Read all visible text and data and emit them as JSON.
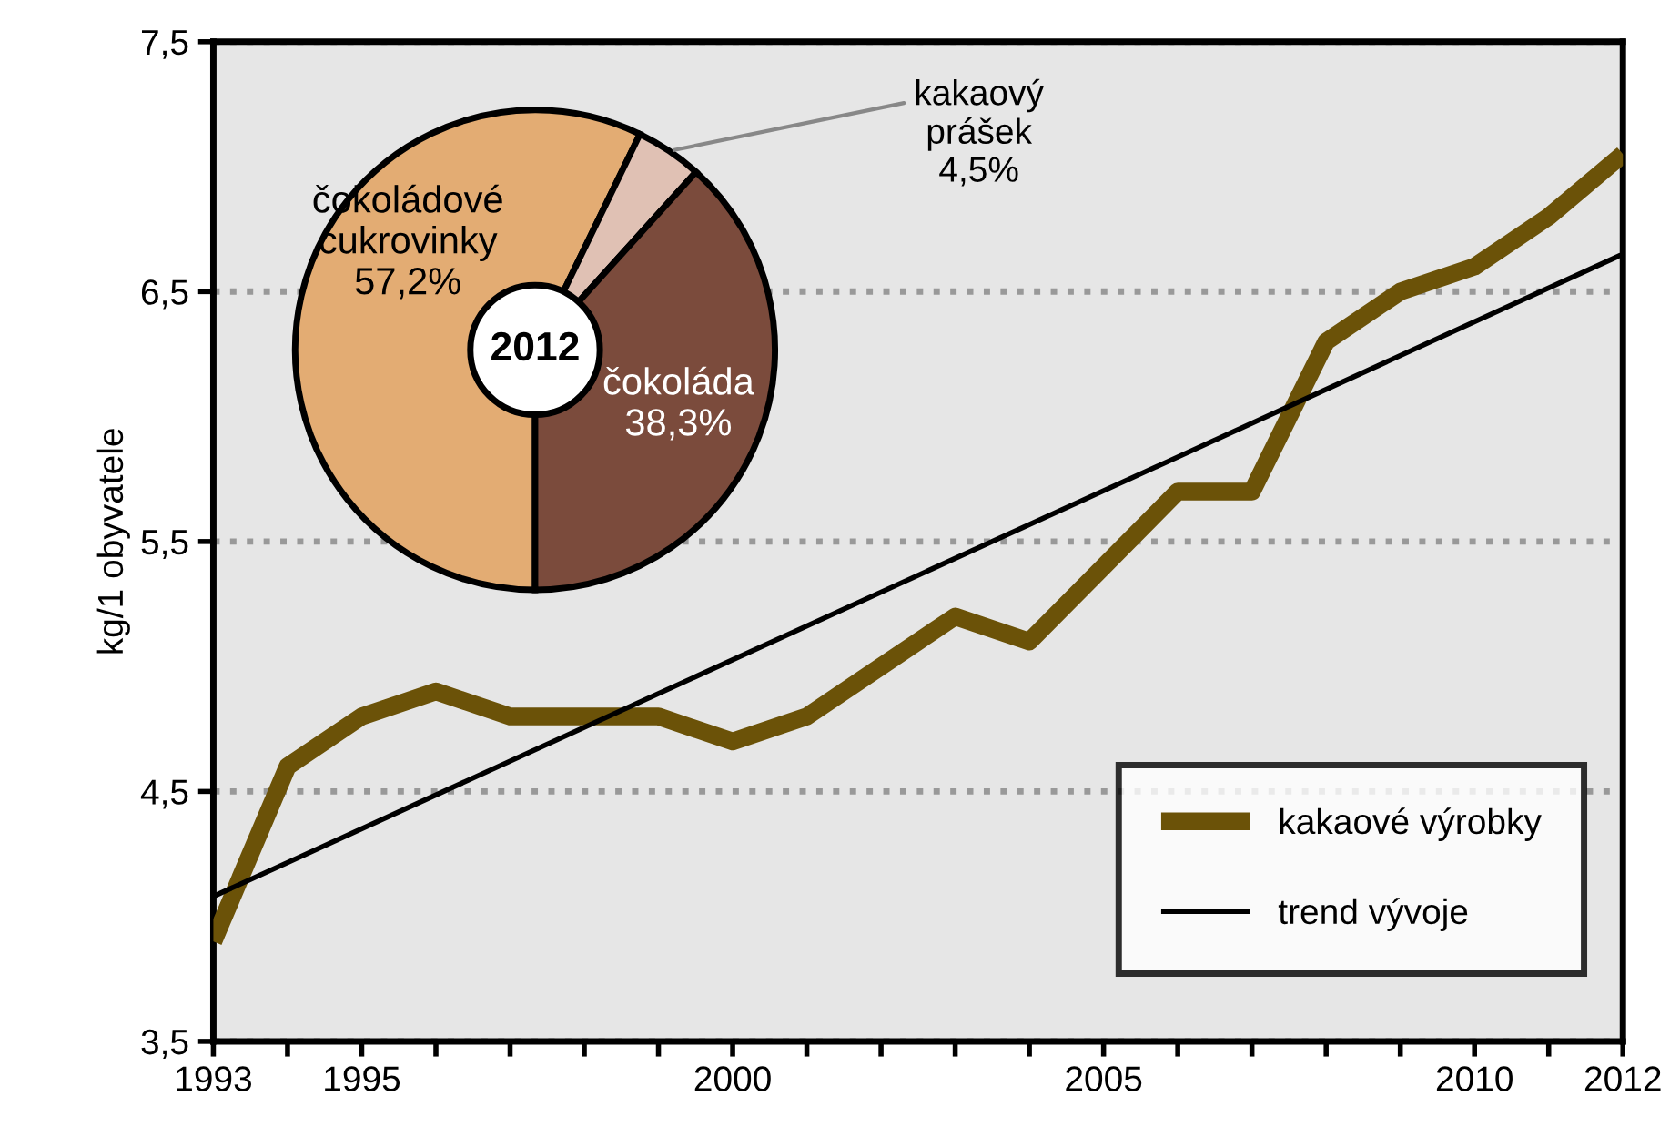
{
  "chart_data": [
    {
      "type": "line",
      "ylabel": "kg/1 obyvatele",
      "xlim": [
        1993,
        2012
      ],
      "ylim": [
        3.5,
        7.5
      ],
      "xticks": [
        1993,
        {
          "value": 1994,
          "label": null
        },
        1995,
        {
          "value": 1996,
          "label": null
        },
        {
          "value": 1997,
          "label": null
        },
        {
          "value": 1998,
          "label": null
        },
        {
          "value": 1999,
          "label": null
        },
        2000,
        {
          "value": 2001,
          "label": null
        },
        {
          "value": 2002,
          "label": null
        },
        {
          "value": 2003,
          "label": null
        },
        {
          "value": 2004,
          "label": null
        },
        2005,
        {
          "value": 2006,
          "label": null
        },
        {
          "value": 2007,
          "label": null
        },
        {
          "value": 2008,
          "label": null
        },
        {
          "value": 2009,
          "label": null
        },
        2010,
        {
          "value": 2011,
          "label": null
        },
        2012
      ],
      "yticks": [
        {
          "value": 3.5,
          "label": "3,5"
        },
        {
          "value": 4.5,
          "label": "4,5"
        },
        {
          "value": 5.5,
          "label": "5,5"
        },
        {
          "value": 6.5,
          "label": "6,5"
        },
        {
          "value": 7.5,
          "label": "7,5"
        }
      ],
      "grid": "y",
      "legend": "bottom right",
      "series": [
        {
          "name": "kakaové výrobky",
          "color": "#6b5208",
          "x": [
            1993,
            1994,
            1995,
            1996,
            1997,
            1998,
            1999,
            2000,
            2001,
            2002,
            2003,
            2004,
            2005,
            2006,
            2007,
            2008,
            2009,
            2010,
            2011,
            2012
          ],
          "values": [
            3.9,
            4.6,
            4.8,
            4.9,
            4.8,
            4.8,
            4.8,
            4.7,
            4.8,
            5.0,
            5.2,
            5.1,
            5.4,
            5.7,
            5.7,
            6.3,
            6.5,
            6.6,
            6.8,
            7.05
          ]
        },
        {
          "name": "trend vývoje",
          "color": "#000000",
          "x": [
            1993,
            2012
          ],
          "values": [
            4.08,
            6.65
          ]
        }
      ]
    },
    {
      "type": "donut",
      "categories": [
        "čokoládové\ncukrovinky",
        "kakaový\nprášek",
        "čokoláda\n"
      ],
      "values": [
        57.2,
        4.5,
        38.3
      ],
      "value_labels": [
        "57,2%",
        "4,5%",
        "38,3%"
      ],
      "colors": [
        "#e3ac73",
        "#e0c1b4",
        "#7b4b3c"
      ],
      "annotations": [
        "2012"
      ]
    }
  ]
}
